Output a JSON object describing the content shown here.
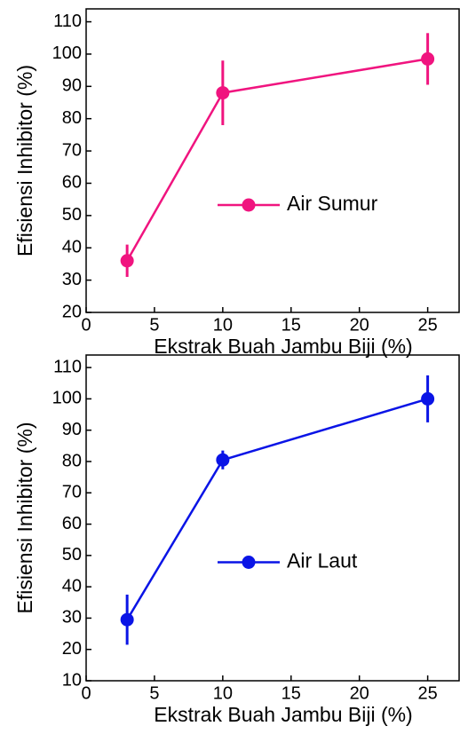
{
  "chart_data": [
    {
      "type": "line",
      "xlabel": "Ekstrak Buah Jambu Biji (%)",
      "ylabel": "Efisiensi Inhibitor (%)",
      "x": [
        3,
        10,
        25
      ],
      "series": [
        {
          "name": "Air Sumur",
          "color": "#f0147f",
          "values": [
            36,
            88,
            98.5
          ],
          "errors": [
            5,
            10,
            8
          ]
        }
      ],
      "xlim": [
        0,
        27.3
      ],
      "xticks": [
        0,
        5,
        10,
        15,
        20,
        25
      ],
      "ylim": [
        20,
        114
      ],
      "yticks": [
        20,
        30,
        40,
        50,
        60,
        70,
        80,
        90,
        100,
        110
      ],
      "legend": "center"
    },
    {
      "type": "line",
      "xlabel": "Ekstrak Buah Jambu Biji (%)",
      "ylabel": "Efisiensi Inhibitor (%)",
      "x": [
        3,
        10,
        25
      ],
      "series": [
        {
          "name": "Air Laut",
          "color": "#0a14e6",
          "values": [
            29.5,
            80.5,
            100
          ],
          "errors": [
            8,
            3,
            7.5
          ]
        }
      ],
      "xlim": [
        0,
        27.3
      ],
      "xticks": [
        0,
        5,
        10,
        15,
        20,
        25
      ],
      "ylim": [
        10,
        114
      ],
      "yticks": [
        10,
        20,
        30,
        40,
        50,
        60,
        70,
        80,
        90,
        100,
        110
      ],
      "legend": "center"
    }
  ]
}
